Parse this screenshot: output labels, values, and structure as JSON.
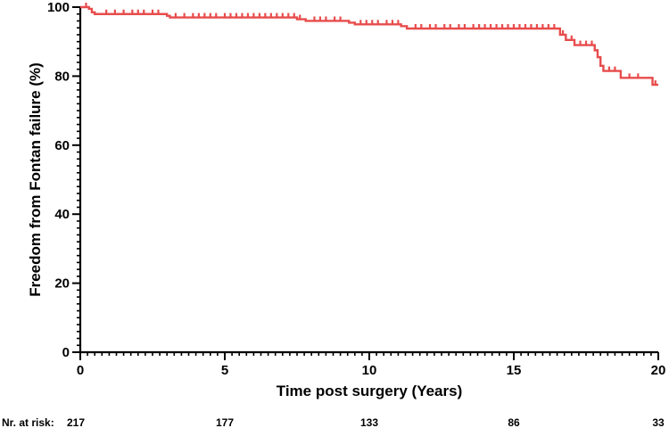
{
  "colors": {
    "curve": "#e84c4c",
    "axis": "#000000"
  },
  "chart_data": {
    "type": "line",
    "subtype": "kaplan-meier",
    "title": "",
    "xlabel": "Time post surgery (Years)",
    "ylabel": "Freedom from Fontan failure (%)",
    "xlim": [
      0,
      20
    ],
    "ylim": [
      0,
      100
    ],
    "xticks": [
      0,
      5,
      10,
      15,
      20
    ],
    "yticks": [
      0,
      20,
      40,
      60,
      80,
      100
    ],
    "grid": false,
    "series": [
      {
        "steps": [
          [
            0,
            100
          ],
          [
            0.3,
            99.5
          ],
          [
            0.4,
            98.5
          ],
          [
            0.5,
            98.0
          ],
          [
            3.0,
            97.5
          ],
          [
            3.1,
            97.0
          ],
          [
            7.5,
            96.5
          ],
          [
            7.8,
            96.0
          ],
          [
            9.3,
            95.5
          ],
          [
            9.5,
            95.0
          ],
          [
            11.1,
            94.5
          ],
          [
            11.3,
            93.8
          ],
          [
            16.6,
            92.0
          ],
          [
            16.8,
            90.5
          ],
          [
            17.1,
            89.0
          ],
          [
            17.8,
            87.5
          ],
          [
            17.9,
            85.5
          ],
          [
            18.0,
            83.0
          ],
          [
            18.1,
            81.5
          ],
          [
            18.7,
            79.5
          ],
          [
            19.8,
            77.5
          ],
          [
            20.0,
            77.5
          ]
        ],
        "censored": [
          0.2,
          0.9,
          1.2,
          1.5,
          1.8,
          2.0,
          2.2,
          2.5,
          2.7,
          3.3,
          3.6,
          3.9,
          4.1,
          4.3,
          4.5,
          4.7,
          5.0,
          5.2,
          5.4,
          5.6,
          5.8,
          6.0,
          6.2,
          6.4,
          6.6,
          6.8,
          7.0,
          7.2,
          7.4,
          7.6,
          8.1,
          8.3,
          8.5,
          8.8,
          9.0,
          9.7,
          9.9,
          10.1,
          10.3,
          10.6,
          10.8,
          11.0,
          11.6,
          11.8,
          12.1,
          12.3,
          12.6,
          12.8,
          13.1,
          13.3,
          13.6,
          13.8,
          14.0,
          14.2,
          14.4,
          14.6,
          14.8,
          15.0,
          15.2,
          15.4,
          15.6,
          15.8,
          16.0,
          16.2,
          16.4,
          16.7,
          17.0,
          17.3,
          17.5,
          17.7,
          18.3,
          18.5,
          19.0,
          19.3,
          19.9
        ]
      }
    ],
    "risk_table": {
      "label": "Nr. at risk:",
      "times": [
        0,
        5,
        10,
        15,
        20
      ],
      "counts": [
        "217",
        "177",
        "133",
        "86",
        "33"
      ]
    }
  }
}
